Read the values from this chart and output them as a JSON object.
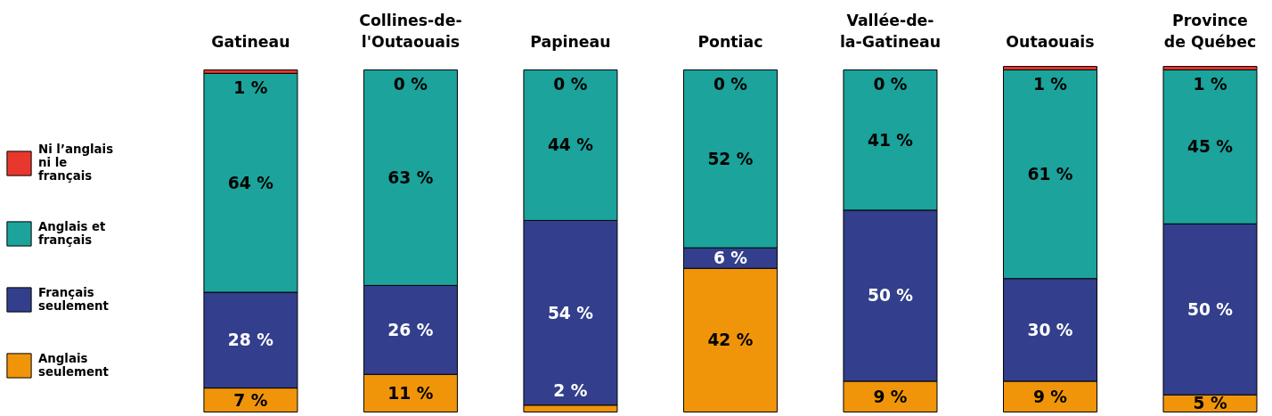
{
  "chart_data": {
    "type": "bar",
    "stacked": true,
    "legend": "left",
    "categories": [
      "Gatineau",
      "Collines-de-l'Outaouais",
      "Papineau",
      "Pontiac",
      "Vallée-de-la-Gatineau",
      "Outaouais",
      "Province de Québec"
    ],
    "series": [
      {
        "name": "Anglais seulement",
        "color": "#f0950a",
        "values": [
          7,
          11,
          2,
          42,
          9,
          9,
          5
        ],
        "value_labels": [
          "7 %",
          "11 %",
          "2 %",
          "42 %",
          "9 %",
          "9 %",
          "5 %"
        ]
      },
      {
        "name": "Français seulement",
        "color": "#333f8c",
        "values": [
          28,
          26,
          54,
          6,
          50,
          30,
          50
        ],
        "value_labels": [
          "28 %",
          "26 %",
          "54 %",
          "6 %",
          "50 %",
          "30 %",
          "50 %"
        ]
      },
      {
        "name": "Anglais et français",
        "color": "#1ba39c",
        "values": [
          64,
          63,
          44,
          52,
          41,
          61,
          45
        ],
        "value_labels": [
          "64 %",
          "63 %",
          "44 %",
          "52 %",
          "41 %",
          "61 %",
          "45 %"
        ]
      },
      {
        "name": "Ni l’anglais ni le français",
        "color": "#e8382e",
        "values": [
          1,
          0,
          0,
          0,
          0,
          1,
          1
        ],
        "value_labels": [
          "1 %",
          "0 %",
          "0 %",
          "0 %",
          "0 %",
          "1 %",
          "1 %"
        ]
      }
    ]
  }
}
